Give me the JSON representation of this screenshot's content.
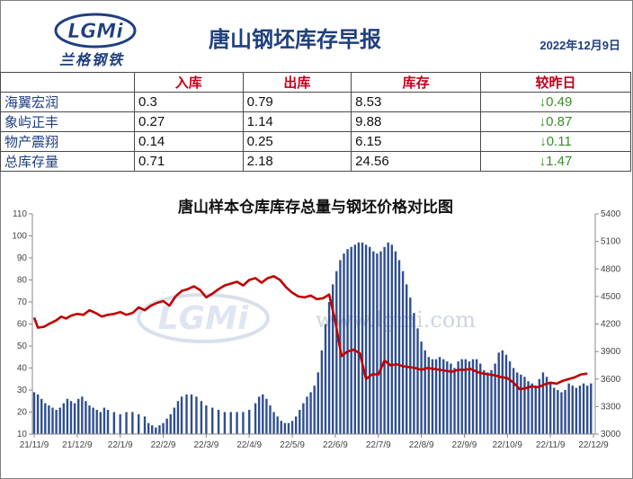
{
  "header": {
    "logo_text": "LGMi",
    "logo_subtitle": "兰格钢铁",
    "title": "唐山钢坯库存早报",
    "date": "2022年12月9日"
  },
  "table": {
    "columns": [
      "",
      "入库",
      "出库",
      "库存",
      "较昨日"
    ],
    "rows": [
      {
        "name": "海翼宏润",
        "in": "0.3",
        "out": "0.79",
        "stock": "8.53",
        "change": "↓0.49"
      },
      {
        "name": "象屿正丰",
        "in": "0.27",
        "out": "1.14",
        "stock": "9.88",
        "change": "↓0.87"
      },
      {
        "name": "物产震翔",
        "in": "0.14",
        "out": "0.25",
        "stock": "6.15",
        "change": "↓0.11"
      },
      {
        "name": "总库存量",
        "in": "0.71",
        "out": "2.18",
        "stock": "24.56",
        "change": "↓1.47"
      }
    ]
  },
  "watermark": "www.lgmi.com",
  "colors": {
    "bar": "#2f4f8f",
    "line": "#c00000",
    "header_text": "#1f3f7f",
    "change": "#3a8a2a"
  },
  "chart_data": {
    "type": "bar",
    "title": "唐山样本仓库库存总量与钢坯价格对比图",
    "x_tick_labels": [
      "21/11/9",
      "21/12/9",
      "22/1/9",
      "22/2/9",
      "22/3/9",
      "22/4/9",
      "22/5/9",
      "22/6/9",
      "22/7/9",
      "22/8/9",
      "22/9/9",
      "22/10/9",
      "22/11/9",
      "22/12/9"
    ],
    "y_left": {
      "min": 10,
      "max": 110,
      "ticks": [
        10,
        20,
        30,
        40,
        50,
        60,
        70,
        80,
        90,
        100,
        110
      ]
    },
    "y_right": {
      "min": 3000,
      "max": 5400,
      "ticks": [
        3000,
        3300,
        3600,
        3900,
        4200,
        4500,
        4800,
        5100,
        5400
      ]
    },
    "grid": false,
    "series": [
      {
        "kind": "bar",
        "axis": "left",
        "points": [
          [
            0,
            29
          ],
          [
            0.3,
            28
          ],
          [
            0.6,
            26
          ],
          [
            0.9,
            24
          ],
          [
            1.2,
            23
          ],
          [
            1.5,
            22
          ],
          [
            1.8,
            21
          ],
          [
            2.1,
            22
          ],
          [
            2.4,
            24
          ],
          [
            2.7,
            26
          ],
          [
            3,
            25
          ],
          [
            3.3,
            24
          ],
          [
            3.6,
            26
          ],
          [
            3.9,
            27
          ],
          [
            4.2,
            25
          ],
          [
            4.5,
            23
          ],
          [
            4.8,
            22
          ],
          [
            5.1,
            21
          ],
          [
            5.4,
            20
          ],
          [
            5.7,
            22
          ],
          [
            6,
            21
          ],
          [
            6.5,
            20
          ],
          [
            7,
            19
          ],
          [
            7.5,
            20
          ],
          [
            8,
            20
          ],
          [
            8.5,
            19
          ],
          [
            9,
            18
          ],
          [
            9.3,
            15
          ],
          [
            9.6,
            14
          ],
          [
            9.9,
            13
          ],
          [
            10.2,
            14
          ],
          [
            10.5,
            15
          ],
          [
            10.8,
            17
          ],
          [
            11.1,
            19
          ],
          [
            11.4,
            22
          ],
          [
            11.7,
            25
          ],
          [
            12,
            27
          ],
          [
            12.4,
            28
          ],
          [
            12.8,
            28
          ],
          [
            13.2,
            27
          ],
          [
            13.6,
            25
          ],
          [
            14,
            23
          ],
          [
            14.5,
            22
          ],
          [
            15,
            21
          ],
          [
            15.5,
            20
          ],
          [
            16,
            20
          ],
          [
            16.5,
            20
          ],
          [
            17,
            20
          ],
          [
            17.5,
            21
          ],
          [
            18,
            24
          ],
          [
            18.3,
            27
          ],
          [
            18.6,
            28
          ],
          [
            18.9,
            26
          ],
          [
            19.2,
            23
          ],
          [
            19.5,
            20
          ],
          [
            19.8,
            18
          ],
          [
            20.1,
            16
          ],
          [
            20.4,
            15
          ],
          [
            20.7,
            15
          ],
          [
            21,
            16
          ],
          [
            21.3,
            18
          ],
          [
            21.6,
            21
          ],
          [
            21.9,
            24
          ],
          [
            22.2,
            27
          ],
          [
            22.5,
            29
          ],
          [
            22.8,
            32
          ],
          [
            23.1,
            38
          ],
          [
            23.4,
            48
          ],
          [
            23.7,
            60
          ],
          [
            24,
            70
          ],
          [
            24.3,
            78
          ],
          [
            24.6,
            84
          ],
          [
            24.9,
            89
          ],
          [
            25.2,
            92
          ],
          [
            25.5,
            94
          ],
          [
            25.8,
            95
          ],
          [
            26.1,
            96
          ],
          [
            26.4,
            97
          ],
          [
            26.7,
            97
          ],
          [
            27,
            96
          ],
          [
            27.3,
            95
          ],
          [
            27.6,
            93
          ],
          [
            27.9,
            92
          ],
          [
            28.2,
            93
          ],
          [
            28.5,
            95
          ],
          [
            28.8,
            97
          ],
          [
            29.1,
            96
          ],
          [
            29.4,
            93
          ],
          [
            29.7,
            89
          ],
          [
            30,
            84
          ],
          [
            30.3,
            78
          ],
          [
            30.6,
            72
          ],
          [
            30.9,
            65
          ],
          [
            31.2,
            58
          ],
          [
            31.5,
            52
          ],
          [
            31.8,
            48
          ],
          [
            32.1,
            45
          ],
          [
            32.4,
            44
          ],
          [
            32.7,
            44
          ],
          [
            33,
            45
          ],
          [
            33.3,
            44
          ],
          [
            33.6,
            43
          ],
          [
            33.9,
            42
          ],
          [
            34.2,
            40
          ],
          [
            34.5,
            43
          ],
          [
            34.8,
            44
          ],
          [
            35.1,
            44
          ],
          [
            35.4,
            43
          ],
          [
            35.7,
            44
          ],
          [
            36,
            44
          ],
          [
            36.3,
            42
          ],
          [
            36.6,
            39
          ],
          [
            36.9,
            38
          ],
          [
            37.2,
            39
          ],
          [
            37.5,
            42
          ],
          [
            37.8,
            47
          ],
          [
            38.1,
            48
          ],
          [
            38.4,
            46
          ],
          [
            38.7,
            43
          ],
          [
            39,
            40
          ],
          [
            39.3,
            38
          ],
          [
            39.6,
            37
          ],
          [
            39.9,
            36
          ],
          [
            40.2,
            34
          ],
          [
            40.5,
            33
          ],
          [
            40.8,
            32
          ],
          [
            41.1,
            35
          ],
          [
            41.4,
            38
          ],
          [
            41.7,
            36
          ],
          [
            42,
            33
          ],
          [
            42.3,
            31
          ],
          [
            42.6,
            30
          ],
          [
            42.9,
            29
          ],
          [
            43.2,
            30
          ],
          [
            43.5,
            33
          ],
          [
            43.8,
            32
          ],
          [
            44.1,
            31
          ],
          [
            44.4,
            32
          ],
          [
            44.7,
            33
          ],
          [
            45,
            32
          ],
          [
            45.3,
            33
          ]
        ]
      },
      {
        "kind": "line",
        "axis": "right",
        "points": [
          [
            0,
            4270
          ],
          [
            0.3,
            4160
          ],
          [
            0.8,
            4170
          ],
          [
            1.2,
            4200
          ],
          [
            1.8,
            4240
          ],
          [
            2.2,
            4280
          ],
          [
            2.6,
            4260
          ],
          [
            3,
            4290
          ],
          [
            3.5,
            4310
          ],
          [
            4,
            4300
          ],
          [
            4.5,
            4350
          ],
          [
            5,
            4320
          ],
          [
            5.5,
            4280
          ],
          [
            6,
            4300
          ],
          [
            6.5,
            4310
          ],
          [
            7,
            4330
          ],
          [
            7.5,
            4300
          ],
          [
            8,
            4320
          ],
          [
            8.5,
            4380
          ],
          [
            9,
            4350
          ],
          [
            9.5,
            4400
          ],
          [
            10,
            4430
          ],
          [
            10.5,
            4450
          ],
          [
            11,
            4400
          ],
          [
            11.5,
            4500
          ],
          [
            12,
            4560
          ],
          [
            12.5,
            4580
          ],
          [
            13,
            4610
          ],
          [
            13.5,
            4570
          ],
          [
            14,
            4490
          ],
          [
            14.5,
            4530
          ],
          [
            15,
            4580
          ],
          [
            15.5,
            4620
          ],
          [
            16,
            4640
          ],
          [
            16.5,
            4660
          ],
          [
            17,
            4620
          ],
          [
            17.5,
            4680
          ],
          [
            18,
            4700
          ],
          [
            18.5,
            4650
          ],
          [
            19,
            4700
          ],
          [
            19.5,
            4720
          ],
          [
            20,
            4680
          ],
          [
            20.5,
            4600
          ],
          [
            21,
            4540
          ],
          [
            21.5,
            4500
          ],
          [
            22,
            4490
          ],
          [
            22.5,
            4510
          ],
          [
            23,
            4470
          ],
          [
            23.5,
            4480
          ],
          [
            24,
            4520
          ],
          [
            24.5,
            4230
          ],
          [
            25,
            3850
          ],
          [
            25.5,
            3900
          ],
          [
            26,
            3920
          ],
          [
            26.5,
            3880
          ],
          [
            27,
            3600
          ],
          [
            27.5,
            3650
          ],
          [
            28,
            3650
          ],
          [
            28.5,
            3800
          ],
          [
            29,
            3750
          ],
          [
            29.5,
            3760
          ],
          [
            30,
            3740
          ],
          [
            30.5,
            3730
          ],
          [
            31,
            3720
          ],
          [
            31.5,
            3700
          ],
          [
            32,
            3720
          ],
          [
            32.5,
            3710
          ],
          [
            33,
            3700
          ],
          [
            33.5,
            3690
          ],
          [
            34,
            3680
          ],
          [
            34.5,
            3700
          ],
          [
            35,
            3700
          ],
          [
            35.5,
            3710
          ],
          [
            36,
            3680
          ],
          [
            36.5,
            3660
          ],
          [
            37,
            3650
          ],
          [
            37.5,
            3640
          ],
          [
            38,
            3620
          ],
          [
            38.5,
            3610
          ],
          [
            39,
            3560
          ],
          [
            39.5,
            3490
          ],
          [
            40,
            3500
          ],
          [
            40.5,
            3520
          ],
          [
            41,
            3510
          ],
          [
            41.5,
            3540
          ],
          [
            42,
            3560
          ],
          [
            42.5,
            3550
          ],
          [
            43,
            3580
          ],
          [
            43.5,
            3600
          ],
          [
            44,
            3620
          ],
          [
            44.5,
            3650
          ],
          [
            45,
            3660
          ]
        ]
      }
    ]
  }
}
